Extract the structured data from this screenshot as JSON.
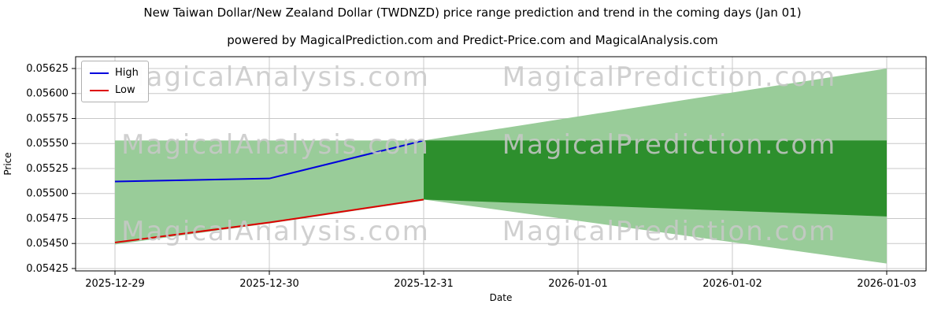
{
  "header": {
    "title": "New Taiwan Dollar/New Zealand Dollar (TWDNZD) price range prediction and trend in the coming days (Jan 01)",
    "subtitle": "powered by MagicalPrediction.com and Predict-Price.com and MagicalAnalysis.com"
  },
  "watermark": {
    "analysis": "MagicalAnalysis.com",
    "prediction": "MagicalPrediction.com"
  },
  "chart_data": {
    "type": "line",
    "title": "New Taiwan Dollar/New Zealand Dollar (TWDNZD) price range prediction and trend in the coming days (Jan 01)",
    "xlabel": "Date",
    "ylabel": "Price",
    "categories": [
      "2025-12-29",
      "2025-12-30",
      "2025-12-31",
      "2026-01-01",
      "2026-01-02",
      "2026-01-03"
    ],
    "ylim": [
      0.054226,
      0.056368
    ],
    "yticks": [
      "0.05425",
      "0.05450",
      "0.05475",
      "0.05500",
      "0.05525",
      "0.05550",
      "0.05575",
      "0.05600",
      "0.05625"
    ],
    "grid": true,
    "legend_position": "upper-left",
    "colors": {
      "band_light": "#99cc99",
      "band_dark": "#2d8f2d",
      "grid": "#c8c8c8",
      "axis": "#000000"
    },
    "series": [
      {
        "name": "High",
        "color": "#0000dd",
        "x": [
          0,
          1,
          2
        ],
        "values": [
          0.05512,
          0.05515,
          0.05553
        ]
      },
      {
        "name": "Low",
        "color": "#dd0000",
        "x": [
          0,
          1,
          2
        ],
        "values": [
          0.05451,
          0.05471,
          0.05494
        ]
      }
    ],
    "bands": [
      {
        "name": "history-range",
        "color": "#99cc99",
        "x": [
          0,
          1,
          2
        ],
        "upper": [
          0.05553,
          0.05553,
          0.05553
        ],
        "lower": [
          0.05449,
          0.0547,
          0.05493
        ]
      },
      {
        "name": "forecast-outer",
        "color": "#99cc99",
        "x": [
          2,
          5
        ],
        "upper": [
          0.05553,
          0.05625
        ],
        "lower": [
          0.05494,
          0.0543
        ]
      },
      {
        "name": "forecast-inner",
        "color": "#2d8f2d",
        "x": [
          2,
          5
        ],
        "upper": [
          0.05553,
          0.05553
        ],
        "lower": [
          0.05494,
          0.05477
        ]
      }
    ]
  }
}
